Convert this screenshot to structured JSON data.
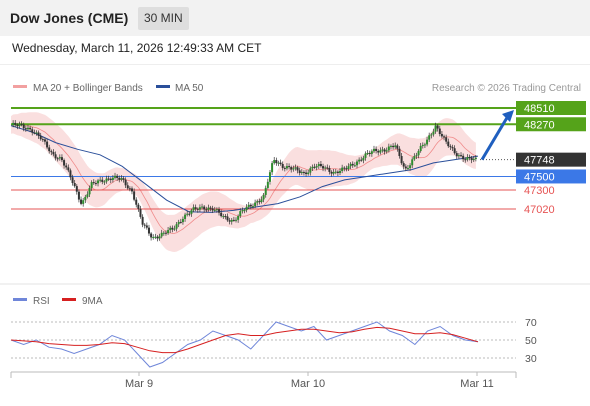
{
  "header": {
    "title": "Dow Jones (CME)",
    "timeframe": "30 MIN"
  },
  "datetime": "Wednesday, March 11, 2026 12:49:33 AM CET",
  "legend": {
    "bollinger": "MA 20 + Bollinger Bands",
    "ma50": "MA 50",
    "credit": "Research © 2026 Trading Central"
  },
  "rsi_legend": {
    "rsi": "RSI",
    "ma9": "9MA"
  },
  "colors": {
    "resistance": "#55a31a",
    "current": "#333333",
    "pivot": "#3b78e7",
    "support": "#e65454",
    "bb": "#f6c5c5",
    "ma50": "#2a4f9a",
    "rsi": "#6f86d9",
    "ma9": "#d62020"
  },
  "chart_data": [
    {
      "type": "candlestick",
      "x_labels": [
        "Mar 9",
        "Mar 10",
        "Mar 11"
      ],
      "ylim": [
        46400,
        48700
      ],
      "levels": [
        {
          "value": 48510,
          "label": "48510",
          "kind": "resistance"
        },
        {
          "value": 48270,
          "label": "48270",
          "kind": "resistance"
        },
        {
          "value": 47748,
          "label": "47748",
          "kind": "current"
        },
        {
          "value": 47500,
          "label": "47500",
          "kind": "pivot"
        },
        {
          "value": 47300,
          "label": "47300",
          "kind": "support"
        },
        {
          "value": 47020,
          "label": "47020",
          "kind": "support"
        }
      ],
      "price_path": [
        48260,
        48240,
        48200,
        48050,
        47850,
        47750,
        47450,
        47100,
        47380,
        47450,
        47480,
        47450,
        47280,
        46800,
        46600,
        46650,
        46720,
        46900,
        47000,
        47050,
        47020,
        46900,
        46850,
        47000,
        47100,
        47200,
        47750,
        47650,
        47600,
        47550,
        47650,
        47630,
        47560,
        47600,
        47700,
        47800,
        47880,
        47900,
        47950,
        47600,
        47800,
        48000,
        48250,
        48000,
        47850,
        47750,
        47748
      ],
      "ma50": [
        48250,
        48150,
        48000,
        47900,
        47820,
        47650,
        47400,
        47150,
        46980,
        46970,
        47000,
        47050,
        47100,
        47200,
        47350,
        47450,
        47500,
        47550,
        47600,
        47700,
        47750,
        47800
      ],
      "forecast_target": 48510
    },
    {
      "type": "line",
      "name": "RSI",
      "ylim": [
        20,
        80
      ],
      "y_ticks": [
        70,
        50,
        30
      ],
      "series": [
        {
          "name": "RSI",
          "values": [
            50,
            45,
            50,
            42,
            40,
            35,
            40,
            45,
            55,
            50,
            35,
            20,
            25,
            35,
            45,
            50,
            60,
            55,
            50,
            40,
            55,
            70,
            65,
            60,
            65,
            50,
            55,
            60,
            65,
            70,
            60,
            55,
            45,
            60,
            65,
            55,
            50,
            48
          ]
        },
        {
          "name": "9MA",
          "values": [
            50,
            49,
            48,
            46,
            45,
            44,
            44,
            45,
            47,
            46,
            42,
            38,
            36,
            36,
            40,
            45,
            50,
            55,
            57,
            55,
            55,
            58,
            60,
            62,
            62,
            60,
            58,
            59,
            62,
            64,
            63,
            60,
            57,
            57,
            58,
            56,
            52,
            48
          ]
        }
      ]
    }
  ]
}
